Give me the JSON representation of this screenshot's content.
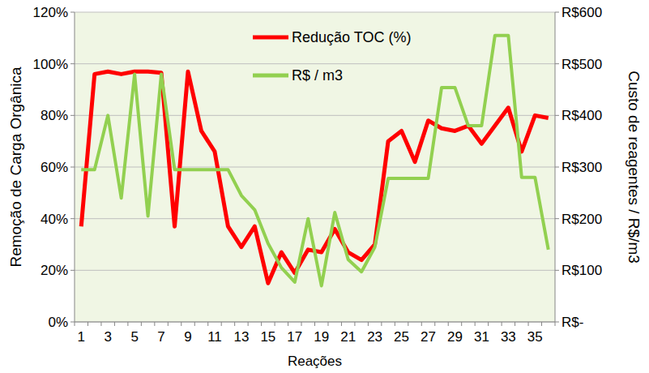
{
  "chart_data": {
    "type": "line",
    "x_label": "Reações",
    "y_label": "Remoção de Carga Orgânica",
    "y2_label": "Custo de reagentes / R$/m3",
    "categories": [
      "1",
      null,
      "3",
      null,
      "5",
      null,
      "7",
      null,
      "9",
      null,
      "11",
      null,
      "13",
      null,
      "15",
      null,
      "17",
      null,
      "19",
      null,
      "21",
      null,
      "23",
      null,
      "25",
      null,
      "27",
      null,
      "29",
      null,
      "31",
      null,
      "33",
      null,
      "35",
      null
    ],
    "ylim": [
      0,
      120
    ],
    "yticks": [
      {
        "value": 0,
        "label": "0%"
      },
      {
        "value": 20,
        "label": "20%"
      },
      {
        "value": 40,
        "label": "40%"
      },
      {
        "value": 60,
        "label": "60%"
      },
      {
        "value": 80,
        "label": "80%"
      },
      {
        "value": 100,
        "label": "100%"
      },
      {
        "value": 120,
        "label": "120%"
      }
    ],
    "y2lim": [
      0,
      600
    ],
    "y2ticks": [
      {
        "value": 0,
        "label": "R$-"
      },
      {
        "value": 100,
        "label": "R$100"
      },
      {
        "value": 200,
        "label": "R$200"
      },
      {
        "value": 300,
        "label": "R$300"
      },
      {
        "value": 400,
        "label": "R$400"
      },
      {
        "value": 500,
        "label": "R$500"
      },
      {
        "value": 600,
        "label": "R$600"
      }
    ],
    "grid": true,
    "legend": "top",
    "series": [
      {
        "name": "Redução TOC (%)",
        "color": "#ff0000",
        "values": [
          37,
          96,
          97,
          96,
          97,
          97,
          96.5,
          37,
          97,
          74,
          66,
          37,
          29,
          37,
          15,
          27,
          19,
          28,
          27,
          36,
          27,
          24,
          30,
          70,
          74,
          62,
          78,
          75,
          74,
          76,
          69,
          76,
          83,
          66,
          80,
          79
        ]
      },
      {
        "name": "R$ / m3",
        "color": "#92d050",
        "axis": "y2",
        "values": [
          295,
          295,
          400,
          240,
          480,
          205,
          480,
          295,
          295,
          295,
          295,
          295,
          245,
          217,
          152,
          105,
          77,
          200,
          70,
          212,
          121,
          97,
          145,
          278,
          278,
          278,
          278,
          454,
          454,
          380,
          380,
          555,
          555,
          280,
          280,
          140
        ]
      }
    ]
  }
}
